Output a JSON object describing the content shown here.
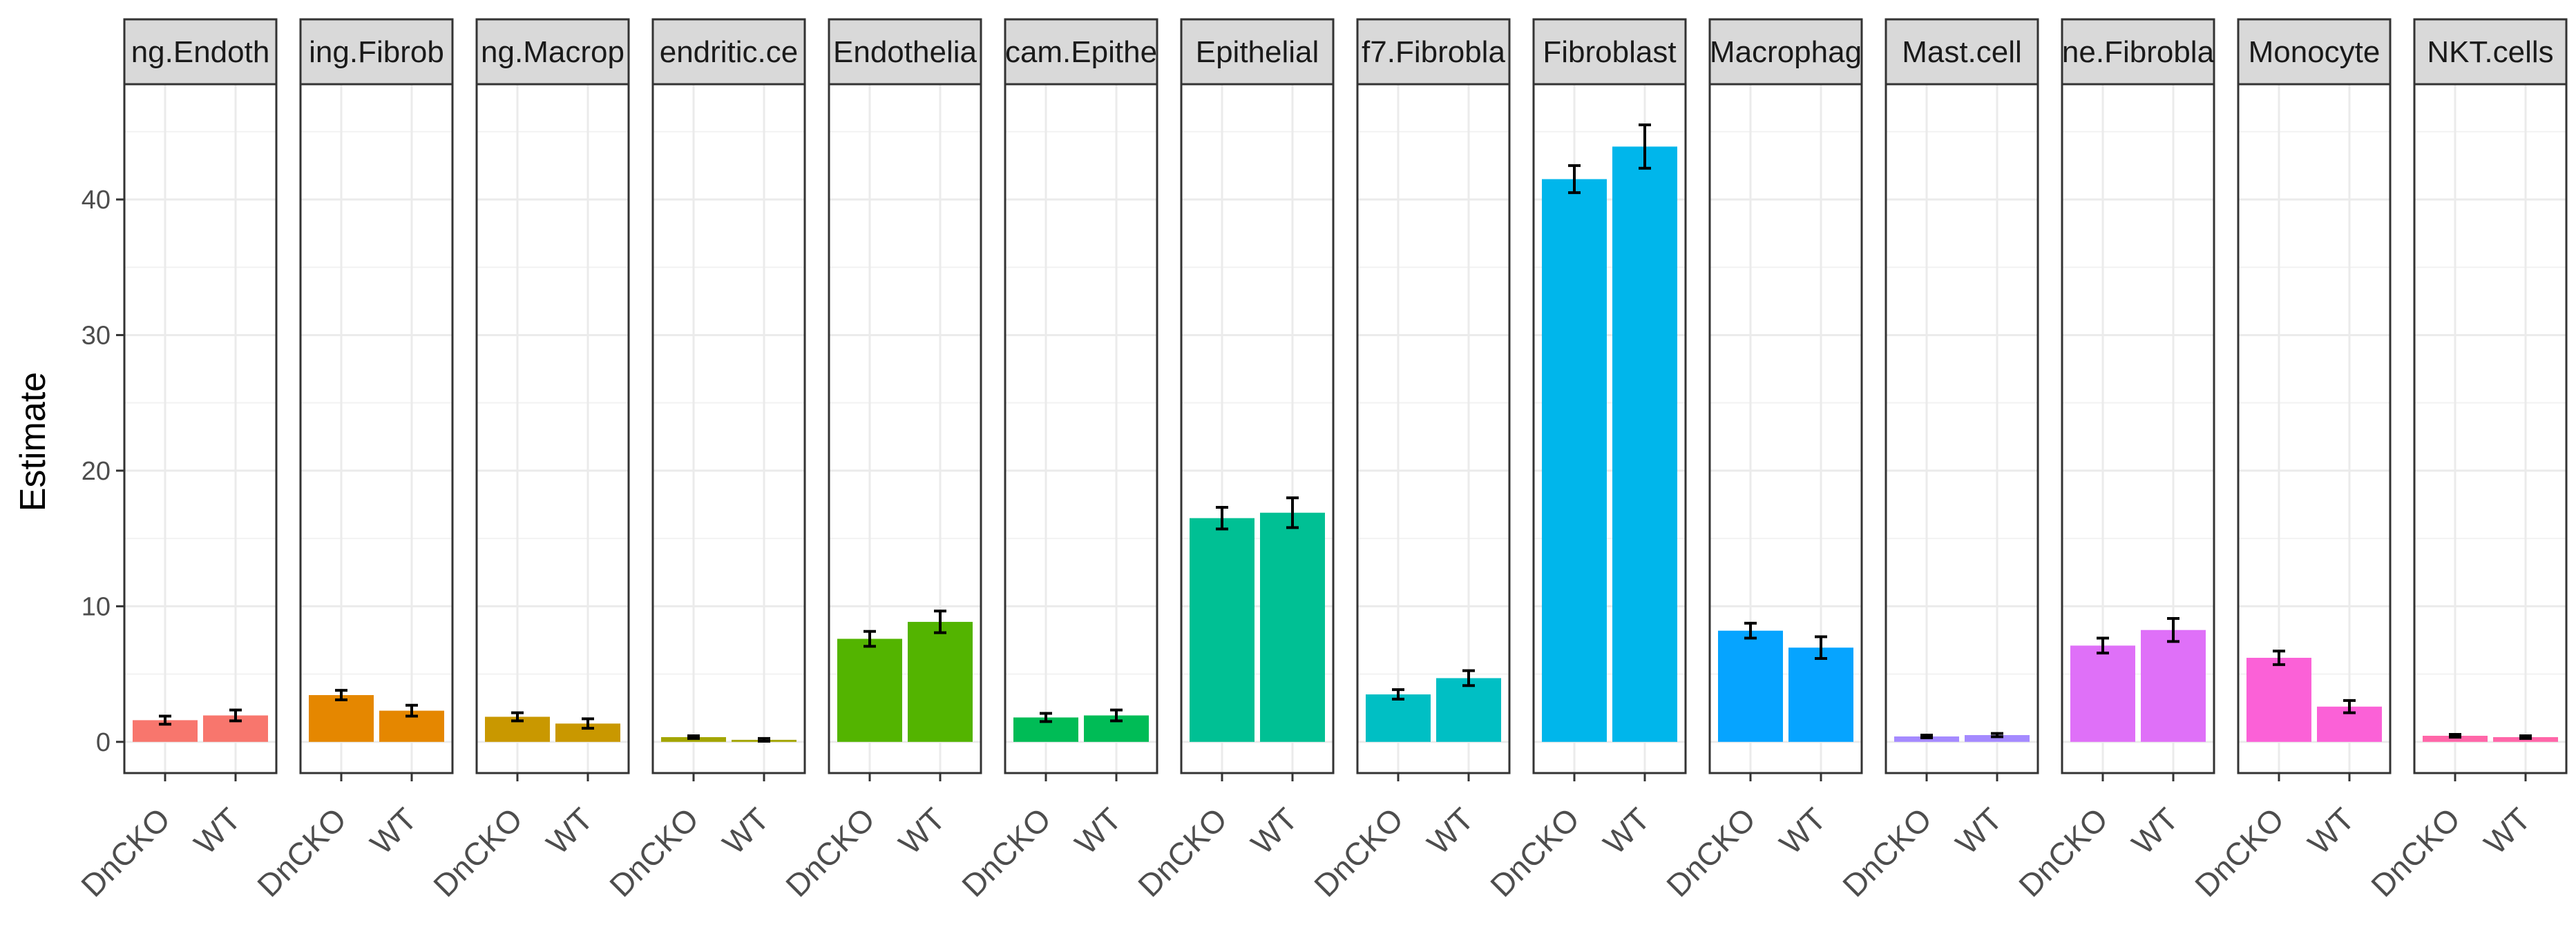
{
  "chart_data": {
    "type": "bar",
    "ylabel": "Estimate",
    "xlabel": "",
    "ylim": [
      -2.3,
      48.5
    ],
    "yticks": [
      0,
      10,
      20,
      30,
      40
    ],
    "grid": true,
    "legend": "none",
    "groups": [
      "DnCKO",
      "WT"
    ],
    "panels": [
      {
        "label": "ng.Endoth",
        "color": "#F8766D",
        "values": [
          1.6,
          1.95
        ],
        "errors": [
          0.3,
          0.4
        ]
      },
      {
        "label": "ing.Fibrob",
        "color": "#E58700",
        "values": [
          3.45,
          2.3
        ],
        "errors": [
          0.35,
          0.4
        ]
      },
      {
        "label": "ng.Macrop",
        "color": "#C99800",
        "values": [
          1.85,
          1.35
        ],
        "errors": [
          0.3,
          0.35
        ]
      },
      {
        "label": "endritic.ce",
        "color": "#A3A500",
        "values": [
          0.35,
          0.15
        ],
        "errors": [
          0.1,
          0.1
        ]
      },
      {
        "label": "Endothelia",
        "color": "#53B400",
        "values": [
          7.6,
          8.85
        ],
        "errors": [
          0.55,
          0.8
        ]
      },
      {
        "label": "cam.Epithe",
        "color": "#00BC56",
        "values": [
          1.8,
          1.95
        ],
        "errors": [
          0.3,
          0.4
        ]
      },
      {
        "label": "Epithelial",
        "color": "#00C094",
        "values": [
          16.5,
          16.9
        ],
        "errors": [
          0.8,
          1.1
        ]
      },
      {
        "label": "f7.Fibrobla",
        "color": "#00BFC4",
        "values": [
          3.5,
          4.7
        ],
        "errors": [
          0.35,
          0.55
        ]
      },
      {
        "label": "Fibroblast",
        "color": "#00B6EB",
        "values": [
          41.5,
          43.9
        ],
        "errors": [
          1.0,
          1.6
        ]
      },
      {
        "label": "Macrophag",
        "color": "#06A4FF",
        "values": [
          8.2,
          6.95
        ],
        "errors": [
          0.55,
          0.8
        ]
      },
      {
        "label": "Mast.cell",
        "color": "#A58AFF",
        "values": [
          0.4,
          0.5
        ],
        "errors": [
          0.1,
          0.12
        ]
      },
      {
        "label": "ne.Fibrobla",
        "color": "#DF70F8",
        "values": [
          7.1,
          8.25
        ],
        "errors": [
          0.55,
          0.85
        ]
      },
      {
        "label": "Monocyte",
        "color": "#FB61D7",
        "values": [
          6.2,
          2.6
        ],
        "errors": [
          0.5,
          0.45
        ]
      },
      {
        "label": "NKT.cells",
        "color": "#FF66A8",
        "values": [
          0.45,
          0.35
        ],
        "errors": [
          0.1,
          0.1
        ]
      }
    ]
  }
}
